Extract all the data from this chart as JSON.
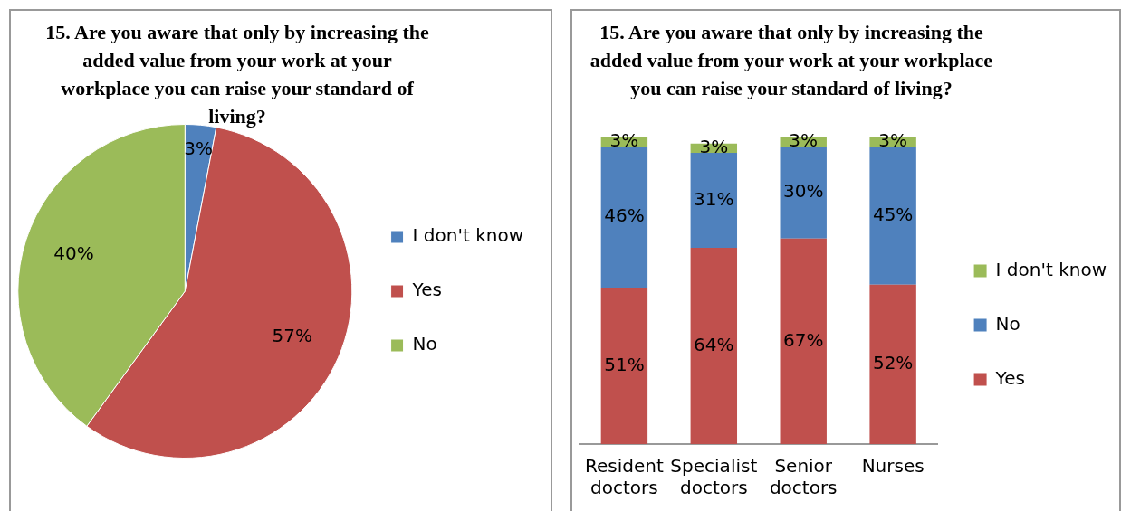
{
  "chart_data": [
    {
      "type": "pie",
      "title": "15. Are you aware that only by increasing the added value from your work at your workplace you can raise your standard of living?",
      "categories": [
        "I don't know",
        "Yes",
        "No"
      ],
      "values": [
        3,
        57,
        40
      ],
      "colors": [
        "#4f81bd",
        "#c0504d",
        "#9bbb59"
      ],
      "value_labels": [
        "3%",
        "57%",
        "40%"
      ],
      "legend": "right"
    },
    {
      "type": "bar",
      "stacked": true,
      "title": "15. Are you aware that only by increasing the added value from your work at your workplace you can raise your standard of living?",
      "categories": [
        "Resident doctors",
        "Specialist doctors",
        "Senior doctors",
        "Nurses"
      ],
      "tick_labels": "x",
      "legend": "right",
      "series": [
        {
          "name": "Yes",
          "color": "#c0504d",
          "values": [
            51,
            64,
            67,
            52
          ],
          "value_labels": [
            "51%",
            "64%",
            "67%",
            "52%"
          ]
        },
        {
          "name": "No",
          "color": "#4f81bd",
          "values": [
            46,
            31,
            30,
            45
          ],
          "value_labels": [
            "46%",
            "31%",
            "30%",
            "45%"
          ]
        },
        {
          "name": "I don't know",
          "color": "#9bbb59",
          "values": [
            3,
            3,
            3,
            3
          ],
          "value_labels": [
            "3%",
            "3%",
            "3%",
            "3%"
          ]
        }
      ]
    }
  ]
}
